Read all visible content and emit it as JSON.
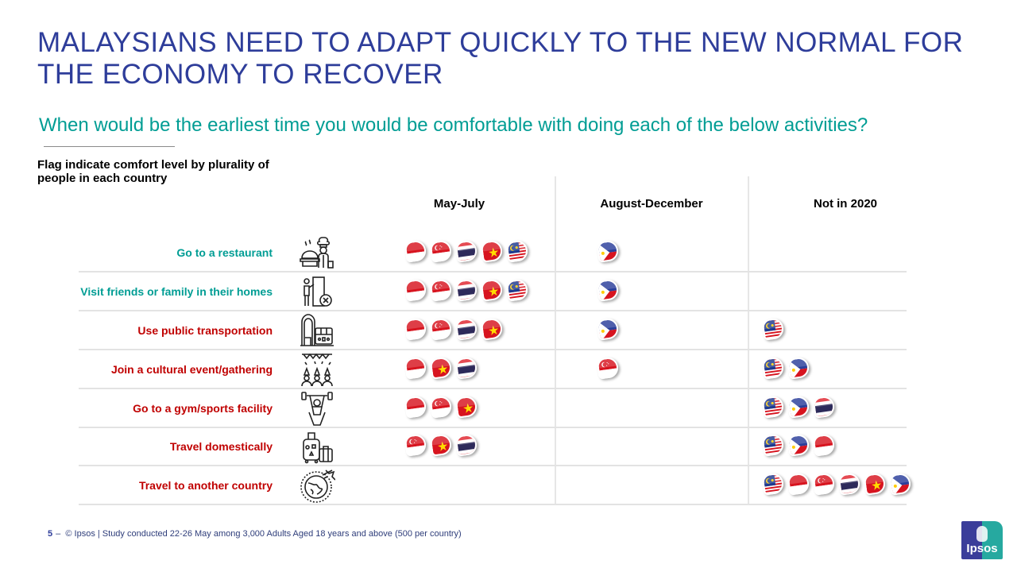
{
  "title": "MALAYSIANS NEED TO ADAPT QUICKLY TO THE NEW NORMAL FOR THE ECONOMY TO RECOVER",
  "subtitle": "When would be the earliest time you would be comfortable with doing each of the below activities?",
  "note": "Flag indicate comfort level by plurality of people in each country",
  "columns": [
    {
      "label": "May-July"
    },
    {
      "label": "August-December"
    },
    {
      "label": "Not in 2020"
    }
  ],
  "colors": {
    "title": "#2e3d9a",
    "subtitle": "#009d94",
    "label_teal": "#009d94",
    "label_red": "#c00000"
  },
  "flags": {
    "indonesia": {
      "name": "Indonesia"
    },
    "singapore": {
      "name": "Singapore"
    },
    "thailand": {
      "name": "Thailand"
    },
    "vietnam": {
      "name": "Vietnam"
    },
    "malaysia": {
      "name": "Malaysia"
    },
    "philippines": {
      "name": "Philippines"
    }
  },
  "rows": [
    {
      "label": "Go to a restaurant",
      "color": "teal",
      "icon": "chef-restaurant-icon",
      "may_july": [
        "indonesia",
        "singapore",
        "thailand",
        "vietnam",
        "malaysia"
      ],
      "aug_dec": [
        "philippines"
      ],
      "not_2020": []
    },
    {
      "label": "Visit friends or family in their homes",
      "color": "teal",
      "icon": "home-visit-icon",
      "may_july": [
        "indonesia",
        "singapore",
        "thailand",
        "vietnam",
        "malaysia"
      ],
      "aug_dec": [
        "philippines"
      ],
      "not_2020": []
    },
    {
      "label": "Use public transportation",
      "color": "red",
      "icon": "public-transport-icon",
      "may_july": [
        "indonesia",
        "singapore",
        "thailand",
        "vietnam"
      ],
      "aug_dec": [
        "philippines"
      ],
      "not_2020": [
        "malaysia"
      ]
    },
    {
      "label": "Join a cultural event/gathering",
      "color": "red",
      "icon": "gathering-icon",
      "may_july": [
        "indonesia",
        "vietnam",
        "thailand"
      ],
      "aug_dec": [
        "singapore"
      ],
      "not_2020": [
        "malaysia",
        "philippines"
      ]
    },
    {
      "label": "Go to a gym/sports facility",
      "color": "red",
      "icon": "gym-icon",
      "may_july": [
        "indonesia",
        "singapore",
        "vietnam"
      ],
      "aug_dec": [],
      "not_2020": [
        "malaysia",
        "philippines",
        "thailand"
      ]
    },
    {
      "label": "Travel domestically",
      "color": "red",
      "icon": "luggage-icon",
      "may_july": [
        "singapore",
        "vietnam",
        "thailand"
      ],
      "aug_dec": [],
      "not_2020": [
        "malaysia",
        "philippines",
        "indonesia"
      ]
    },
    {
      "label": "Travel to another country",
      "color": "red",
      "icon": "globe-plane-icon",
      "may_july": [],
      "aug_dec": [],
      "not_2020": [
        "malaysia",
        "indonesia",
        "singapore",
        "thailand",
        "vietnam",
        "philippines"
      ]
    }
  ],
  "footer": {
    "page": "5",
    "dash": "–",
    "text": "© Ipsos | Study conducted 22-26 May among 3,000 Adults Aged 18 years and above (500 per country)"
  },
  "logo": {
    "text": "Ipsos"
  }
}
